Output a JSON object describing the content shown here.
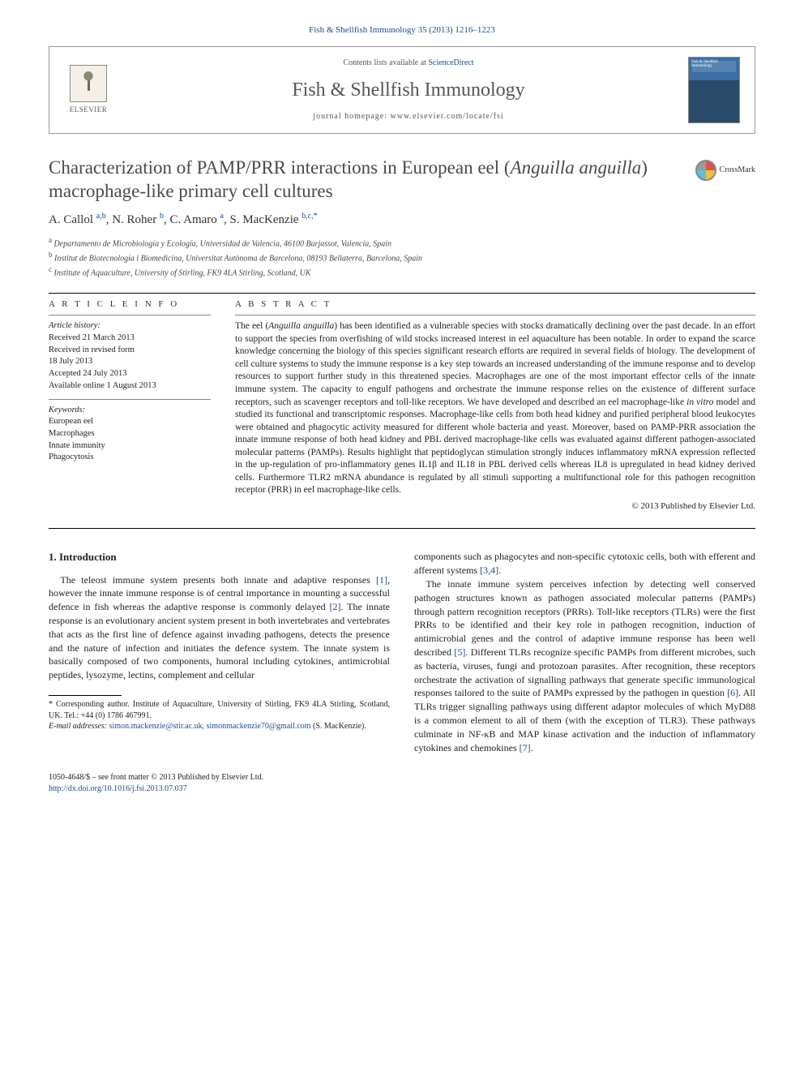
{
  "journal_ref": "Fish & Shellfish Immunology 35 (2013) 1216–1223",
  "header": {
    "elsevier_label": "ELSEVIER",
    "contents_prefix": "Contents lists available at ",
    "contents_link": "ScienceDirect",
    "journal_name": "Fish & Shellfish Immunology",
    "homepage_prefix": "journal homepage: ",
    "homepage_url": "www.elsevier.com/locate/fsi",
    "cover_text": "Fish & Shellfish Immunology"
  },
  "crossmark": {
    "label": "CrossMark"
  },
  "title_parts": {
    "line1": "Characterization of PAMP/PRR interactions in European eel (",
    "italic": "Anguilla anguilla",
    "line2": ") macrophage-like primary cell cultures"
  },
  "authors_html": "A. Callol <sup>a,b</sup>, N. Roher <sup>b</sup>, C. Amaro <sup>a</sup>, S. MacKenzie <sup>b,c,*</sup>",
  "affiliations": [
    {
      "sup": "a",
      "text": "Departamento de Microbiología y Ecología, Universidad de Valencia, 46100 Burjassot, Valencia, Spain"
    },
    {
      "sup": "b",
      "text": "Institut de Biotecnologia i Biomedicina, Universitat Autònoma de Barcelona, 08193 Bellaterra, Barcelona, Spain"
    },
    {
      "sup": "c",
      "text": "Institute of Aquaculture, University of Stirling, FK9 4LA Stirling, Scotland, UK"
    }
  ],
  "article_info": {
    "label": "A R T I C L E   I N F O",
    "history_label": "Article history:",
    "history": [
      "Received 21 March 2013",
      "Received in revised form",
      "18 July 2013",
      "Accepted 24 July 2013",
      "Available online 1 August 2013"
    ],
    "keywords_label": "Keywords:",
    "keywords": [
      "European eel",
      "Macrophages",
      "Innate immunity",
      "Phagocytosis"
    ]
  },
  "abstract": {
    "label": "A B S T R A C T",
    "text": "The eel (Anguilla anguilla) has been identified as a vulnerable species with stocks dramatically declining over the past decade. In an effort to support the species from overfishing of wild stocks increased interest in eel aquaculture has been notable. In order to expand the scarce knowledge concerning the biology of this species significant research efforts are required in several fields of biology. The development of cell culture systems to study the immune response is a key step towards an increased understanding of the immune response and to develop resources to support further study in this threatened species. Macrophages are one of the most important effector cells of the innate immune system. The capacity to engulf pathogens and orchestrate the immune response relies on the existence of different surface receptors, such as scavenger receptors and toll-like receptors. We have developed and described an eel macrophage-like in vitro model and studied its functional and transcriptomic responses. Macrophage-like cells from both head kidney and purified peripheral blood leukocytes were obtained and phagocytic activity measured for different whole bacteria and yeast. Moreover, based on PAMP-PRR association the innate immune response of both head kidney and PBL derived macrophage-like cells was evaluated against different pathogen-associated molecular patterns (PAMPs). Results highlight that peptidoglycan stimulation strongly induces inflammatory mRNA expression reflected in the up-regulation of pro-inflammatory genes IL1β and IL18 in PBL derived cells whereas IL8 is upregulated in head kidney derived cells. Furthermore TLR2 mRNA abundance is regulated by all stimuli supporting a multifunctional role for this pathogen recognition receptor (PRR) in eel macrophage-like cells.",
    "copyright": "© 2013 Published by Elsevier Ltd."
  },
  "intro": {
    "heading": "1. Introduction",
    "p1": "The teleost immune system presents both innate and adaptive responses [1], however the innate immune response is of central importance in mounting a successful defence in fish whereas the adaptive response is commonly delayed [2]. The innate response is an evolutionary ancient system present in both invertebrates and vertebrates that acts as the first line of defence against invading pathogens, detects the presence and the nature of infection and initiates the defence system. The innate system is basically composed of two components, humoral including cytokines, antimicrobial peptides, lysozyme, lectins, complement and cellular",
    "p2": "components such as phagocytes and non-specific cytotoxic cells, both with efferent and afferent systems [3,4].",
    "p3": "The innate immune system perceives infection by detecting well conserved pathogen structures known as pathogen associated molecular patterns (PAMPs) through pattern recognition receptors (PRRs). Toll-like receptors (TLRs) were the first PRRs to be identified and their key role in pathogen recognition, induction of antimicrobial genes and the control of adaptive immune response has been well described [5]. Different TLRs recognize specific PAMPs from different microbes, such as bacteria, viruses, fungi and protozoan parasites. After recognition, these receptors orchestrate the activation of signalling pathways that generate specific immunological responses tailored to the suite of PAMPs expressed by the pathogen in question [6]. All TLRs trigger signalling pathways using different adaptor molecules of which MyD88 is a common element to all of them (with the exception of TLR3). These pathways culminate in NF-κB and MAP kinase activation and the induction of inflammatory cytokines and chemokines [7]."
  },
  "footnotes": {
    "corr": "* Corresponding author. Institute of Aquaculture, University of Stirling, FK9 4LA Stirling, Scotland, UK. Tel.: +44 (0) 1786 467991.",
    "email_label": "E-mail addresses:",
    "emails": "simon.mackenzie@stir.ac.uk, simonmackenzie70@gmail.com",
    "email_person": "(S. MacKenzie)."
  },
  "bottom": {
    "issn": "1050-4648/$ – see front matter © 2013 Published by Elsevier Ltd.",
    "doi": "http://dx.doi.org/10.1016/j.fsi.2013.07.037"
  },
  "refs": [
    "[1]",
    "[2]",
    "[3,4]",
    "[5]",
    "[6]",
    "[7]"
  ],
  "colors": {
    "link": "#1a4b8f",
    "text": "#222222",
    "heading": "#4a4a4a",
    "border": "#999999",
    "cover_top": "#3a6ea5",
    "cover_bottom": "#2a4a6a"
  },
  "typography": {
    "title_fontsize_pt": 18,
    "journal_fontsize_pt": 19,
    "body_fontsize_pt": 9,
    "abstract_fontsize_pt": 8.5,
    "font_family": "Georgia / Charis-like serif"
  }
}
